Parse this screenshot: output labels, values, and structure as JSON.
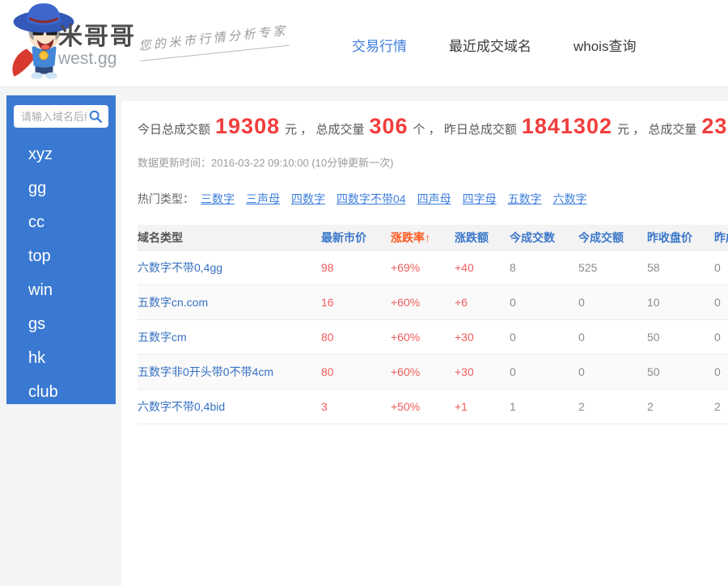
{
  "header": {
    "brand": "米哥哥",
    "brand_domain": "west.gg",
    "slogan": "您的米市行情分析专家",
    "nav": [
      {
        "id": "trade-market",
        "label": "交易行情",
        "active": true
      },
      {
        "id": "recent-deals",
        "label": "最近成交域名",
        "active": false
      },
      {
        "id": "whois",
        "label": "whois查询",
        "active": false
      }
    ]
  },
  "sidebar": {
    "search_placeholder": "请输入域名后缀",
    "items": [
      "xyz",
      "gg",
      "cc",
      "top",
      "win",
      "gs",
      "hk",
      "club"
    ]
  },
  "main": {
    "stats_segments": [
      {
        "kind": "label",
        "text": "今日总成交额"
      },
      {
        "kind": "number",
        "text": "19308"
      },
      {
        "kind": "label",
        "text": "元 ， 总成交量"
      },
      {
        "kind": "number",
        "text": "306"
      },
      {
        "kind": "label",
        "text": "个 ， 昨日总成交额"
      },
      {
        "kind": "number",
        "text": "1841302"
      },
      {
        "kind": "label",
        "text": "元 ， 总成交量"
      },
      {
        "kind": "number",
        "text": "23"
      }
    ],
    "update_time": "数据更新时间：2016-03-22 09:10:00 (10分钟更新一次)",
    "hot_types": {
      "label": "热门类型：",
      "links": [
        "三数字",
        "三声母",
        "四数字",
        "四数字不带04",
        "四声母",
        "四字母",
        "五数字",
        "六数字"
      ]
    },
    "table": {
      "headers": [
        "域名类型",
        "最新市价",
        "涨跌率↑",
        "涨跌额",
        "今成交数",
        "今成交额",
        "昨收盘价",
        "昨成交数"
      ],
      "rows": [
        [
          "六数字不带0,4gg",
          "98",
          "+69%",
          "+40",
          "8",
          "525",
          "58",
          "0"
        ],
        [
          "五数字cn.com",
          "16",
          "+60%",
          "+6",
          "0",
          "0",
          "10",
          "0"
        ],
        [
          "五数字cm",
          "80",
          "+60%",
          "+30",
          "0",
          "0",
          "50",
          "0"
        ],
        [
          "五数字非0开头带0不带4cm",
          "80",
          "+60%",
          "+30",
          "0",
          "0",
          "50",
          "0"
        ],
        [
          "六数字不带0,4bid",
          "3",
          "+50%",
          "+1",
          "1",
          "2",
          "2",
          "2"
        ]
      ]
    }
  },
  "colors": {
    "sidebar_blue": "#3a79d2",
    "link_blue": "#3e7edd",
    "stat_red": "#f23d3d",
    "cell_red": "#f25c5c",
    "rate_orange": "#ff5a1e",
    "table_header_blue": "#3a77c9"
  }
}
